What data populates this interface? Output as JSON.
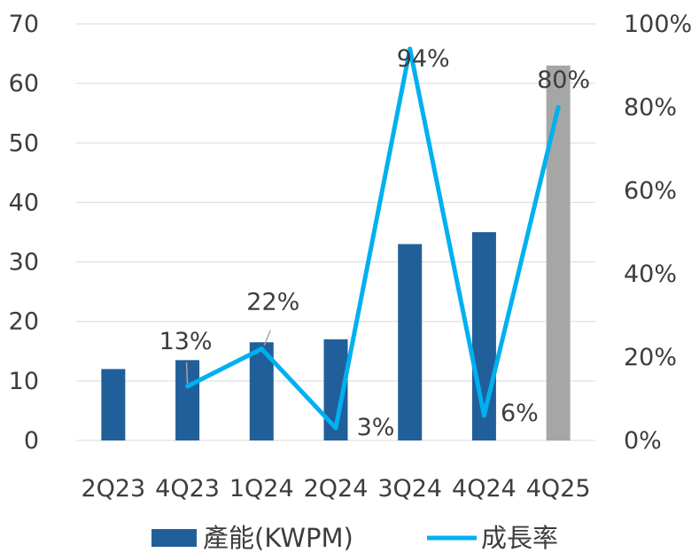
{
  "chart_data": {
    "type": "bar+line",
    "categories": [
      "2Q23",
      "4Q23",
      "1Q24",
      "2Q24",
      "3Q24",
      "4Q24",
      "4Q25"
    ],
    "series": [
      {
        "name": "產能(KWPM)",
        "type": "bar",
        "axis": "left",
        "values": [
          12,
          13.5,
          16.5,
          17,
          33,
          35,
          63
        ],
        "colors": [
          "#215f9a",
          "#215f9a",
          "#215f9a",
          "#215f9a",
          "#215f9a",
          "#215f9a",
          "#a6a6a6"
        ]
      },
      {
        "name": "成長率",
        "type": "line",
        "axis": "right",
        "values": [
          null,
          13,
          22,
          3,
          94,
          6,
          80
        ],
        "labels": [
          "",
          "13%",
          "22%",
          "3%",
          "94%",
          "6%",
          "80%"
        ],
        "color": "#00b0f0"
      }
    ],
    "y_left": {
      "min": 0,
      "max": 70,
      "ticks": [
        "0",
        "10",
        "20",
        "30",
        "40",
        "50",
        "60",
        "70"
      ]
    },
    "y_right": {
      "min": 0,
      "max": 100,
      "ticks": [
        "0%",
        "20%",
        "40%",
        "60%",
        "80%",
        "100%"
      ]
    },
    "grid": true,
    "legend_position": "bottom"
  }
}
